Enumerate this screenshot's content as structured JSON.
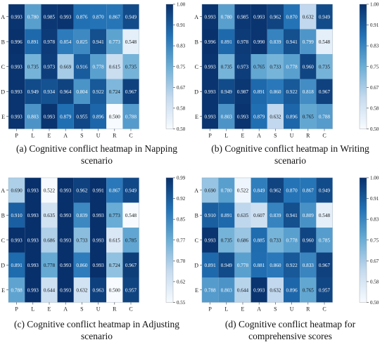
{
  "chart_data": [
    {
      "type": "heatmap",
      "caption_line1": "(a) Cognitive conflict heatmap in Napping",
      "caption_line2": "scenario",
      "x_labels": [
        "P",
        "L",
        "E",
        "A",
        "S",
        "U",
        "R",
        "C"
      ],
      "y_labels": [
        "A",
        "B",
        "C",
        "D",
        "E"
      ],
      "values": [
        [
          0.993,
          0.78,
          0.985,
          0.993,
          0.876,
          0.87,
          0.867,
          0.949
        ],
        [
          0.996,
          0.891,
          0.978,
          0.854,
          0.825,
          0.941,
          0.773,
          0.548
        ],
        [
          0.993,
          0.735,
          0.973,
          0.669,
          0.916,
          0.778,
          0.615,
          0.735
        ],
        [
          0.993,
          0.949,
          0.934,
          0.964,
          0.804,
          0.922,
          0.724,
          0.967
        ],
        [
          0.993,
          0.803,
          0.993,
          0.879,
          0.955,
          0.896,
          0.5,
          0.788
        ]
      ],
      "colorbar_ticks": [
        "1.00",
        "0.91",
        "0.83",
        "0.75",
        "0.67",
        "0.58",
        "0.50"
      ],
      "vmin": 0.5,
      "vmax": 1.0
    },
    {
      "type": "heatmap",
      "caption_line1": "(b) Cognitive conflict heatmap in Writing",
      "caption_line2": "scenario",
      "x_labels": [
        "P",
        "L",
        "E",
        "A",
        "S",
        "U",
        "R",
        "C"
      ],
      "y_labels": [
        "A",
        "B",
        "C",
        "D",
        "E"
      ],
      "values": [
        [
          0.993,
          0.78,
          0.985,
          0.993,
          0.962,
          0.87,
          0.632,
          0.949
        ],
        [
          0.996,
          0.891,
          0.978,
          0.99,
          0.839,
          0.941,
          0.799,
          0.548
        ],
        [
          0.993,
          0.735,
          0.973,
          0.765,
          0.733,
          0.778,
          0.96,
          0.735
        ],
        [
          0.993,
          0.949,
          0.987,
          0.891,
          0.86,
          0.922,
          0.818,
          0.967
        ],
        [
          0.993,
          0.803,
          0.993,
          0.879,
          0.632,
          0.896,
          0.765,
          0.788
        ]
      ],
      "colorbar_ticks": [
        "1.00",
        "0.91",
        "0.83",
        "0.75",
        "0.67",
        "0.58",
        "0.50"
      ],
      "vmin": 0.5,
      "vmax": 1.0
    },
    {
      "type": "heatmap",
      "caption_line1": "(c) Cognitive conflict heatmap in Adjusting",
      "caption_line2": "scenario",
      "x_labels": [
        "P",
        "L",
        "E",
        "A",
        "S",
        "U",
        "R",
        "C"
      ],
      "y_labels": [
        "A",
        "B",
        "C",
        "D",
        "E"
      ],
      "values": [
        [
          0.69,
          0.993,
          0.522,
          0.993,
          0.962,
          0.991,
          0.867,
          0.949
        ],
        [
          0.91,
          0.993,
          0.635,
          0.993,
          0.839,
          0.993,
          0.773,
          0.548
        ],
        [
          0.993,
          0.993,
          0.686,
          0.993,
          0.733,
          0.993,
          0.615,
          0.785
        ],
        [
          0.891,
          0.993,
          0.778,
          0.993,
          0.86,
          0.993,
          0.724,
          0.967
        ],
        [
          0.788,
          0.993,
          0.644,
          0.993,
          0.632,
          0.963,
          0.5,
          0.957
        ]
      ],
      "colorbar_ticks": [
        "0.99",
        "0.92",
        "0.85",
        "0.77",
        "0.70",
        "0.62",
        "0.55"
      ],
      "vmin": 0.55,
      "vmax": 0.99
    },
    {
      "type": "heatmap",
      "caption_line1": "(d) Cognitive conflict heatmap for",
      "caption_line2": "comprehensive scores",
      "x_labels": [
        "P",
        "L",
        "E",
        "A",
        "S",
        "U",
        "R",
        "C"
      ],
      "y_labels": [
        "A",
        "B",
        "C",
        "D",
        "E"
      ],
      "values": [
        [
          0.69,
          0.78,
          0.522,
          0.849,
          0.962,
          0.87,
          0.867,
          0.949
        ],
        [
          0.91,
          0.891,
          0.635,
          0.607,
          0.839,
          0.941,
          0.809,
          0.548
        ],
        [
          0.993,
          0.735,
          0.686,
          0.885,
          0.733,
          0.778,
          0.96,
          0.785
        ],
        [
          0.891,
          0.949,
          0.778,
          0.881,
          0.86,
          0.922,
          0.833,
          0.967
        ],
        [
          0.788,
          0.803,
          0.644,
          0.993,
          0.632,
          0.896,
          0.765,
          0.957
        ]
      ],
      "colorbar_ticks": [
        "1.00",
        "0.91",
        "0.83",
        "0.75",
        "0.67",
        "0.58",
        "0.50"
      ],
      "vmin": 0.5,
      "vmax": 1.0
    }
  ],
  "colors": {
    "low": "#f7fbff",
    "mid": "#6baed6",
    "high": "#08306b"
  }
}
